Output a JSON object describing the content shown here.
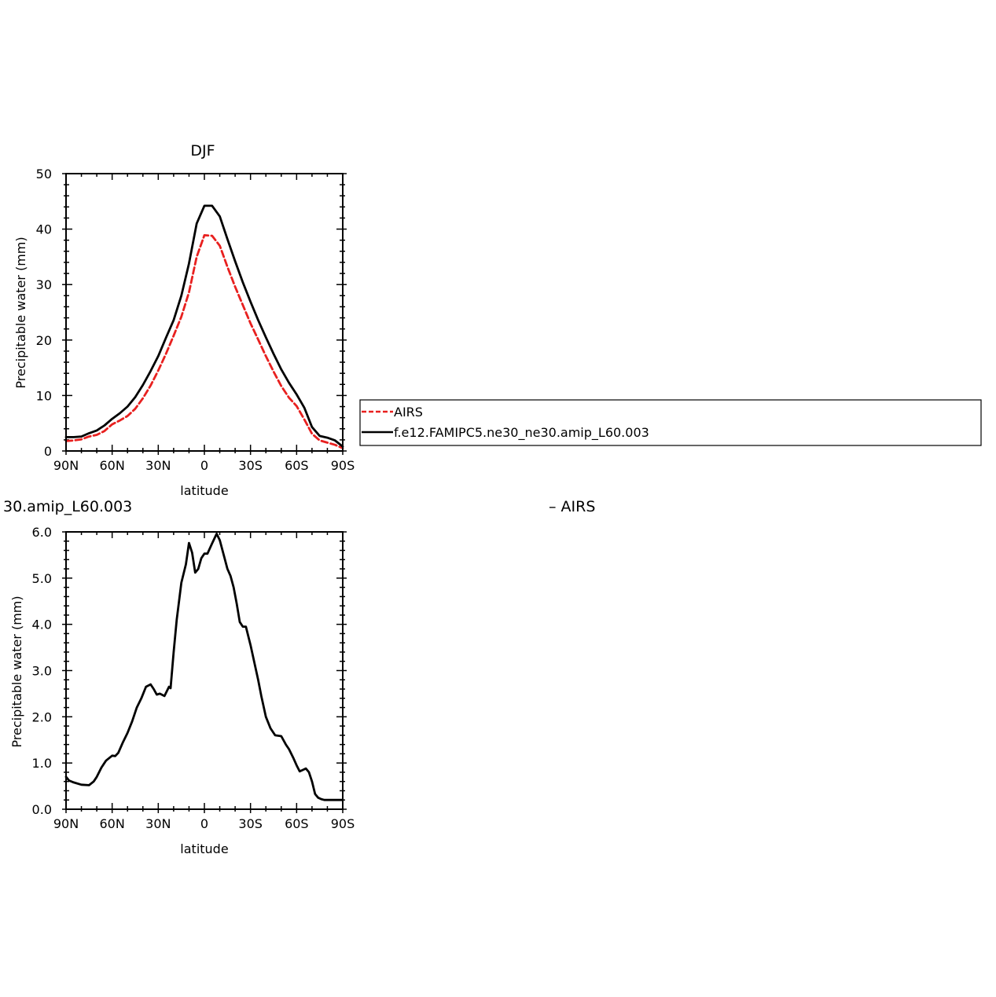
{
  "panels": [
    {
      "title": "DJF",
      "xlabel": "latitude",
      "ylabel": "Precipitable water (mm)",
      "xticks": [
        "90N",
        "60N",
        "30N",
        "0",
        "30S",
        "60S",
        "90S"
      ],
      "yticks": [
        "0",
        "10",
        "20",
        "30",
        "40",
        "50"
      ]
    },
    {
      "title": "30.amip_L60.003",
      "subtitle_right": "– AIRS",
      "xlabel": "latitude",
      "ylabel": "Precipitable water (mm)",
      "xticks": [
        "90N",
        "60N",
        "30N",
        "0",
        "30S",
        "60S",
        "90S"
      ],
      "yticks": [
        "0.0",
        "1.0",
        "2.0",
        "3.0",
        "4.0",
        "5.0",
        "6.0"
      ]
    }
  ],
  "legend": {
    "items": [
      {
        "label": "AIRS",
        "color": "#e8201f",
        "style": "dashed"
      },
      {
        "label": "f.e12.FAMIPC5.ne30_ne30.amip_L60.003",
        "color": "#000000",
        "style": "solid"
      }
    ]
  },
  "chart_data": [
    {
      "type": "line",
      "title": "DJF",
      "xlabel": "latitude",
      "ylabel": "Precipitable water (mm)",
      "xlim": [
        90,
        -90
      ],
      "ylim": [
        0,
        50
      ],
      "series": [
        {
          "name": "AIRS",
          "color": "#e8201f",
          "style": "dashed",
          "x": [
            90,
            85,
            80,
            75,
            70,
            65,
            60,
            55,
            50,
            45,
            40,
            35,
            30,
            25,
            20,
            15,
            10,
            5,
            0,
            -5,
            -10,
            -15,
            -20,
            -25,
            -30,
            -35,
            -40,
            -45,
            -50,
            -55,
            -60,
            -65,
            -70,
            -75,
            -80,
            -85,
            -90
          ],
          "y": [
            1.8,
            1.9,
            2.1,
            2.6,
            2.9,
            3.6,
            4.8,
            5.5,
            6.3,
            7.6,
            9.5,
            11.8,
            14.5,
            17.5,
            20.8,
            24.2,
            28.6,
            35.0,
            38.9,
            38.8,
            37.0,
            33.2,
            29.6,
            26.3,
            23.0,
            20.1,
            17.1,
            14.3,
            11.7,
            9.6,
            8.1,
            5.7,
            3.1,
            1.9,
            1.5,
            1.1,
            0.5
          ]
        },
        {
          "name": "f.e12.FAMIPC5.ne30_ne30.amip_L60.003",
          "color": "#000000",
          "style": "solid",
          "x": [
            90,
            85,
            80,
            75,
            70,
            65,
            60,
            55,
            50,
            45,
            40,
            35,
            30,
            25,
            20,
            15,
            10,
            5,
            0,
            -5,
            -10,
            -15,
            -20,
            -25,
            -30,
            -35,
            -40,
            -45,
            -50,
            -55,
            -60,
            -65,
            -70,
            -75,
            -80,
            -85,
            -90
          ],
          "y": [
            2.5,
            2.5,
            2.6,
            3.2,
            3.7,
            4.6,
            5.8,
            6.8,
            8.0,
            9.7,
            11.9,
            14.4,
            17.1,
            20.4,
            23.6,
            28.0,
            33.8,
            41.0,
            44.2,
            44.2,
            42.3,
            38.2,
            34.2,
            30.4,
            26.9,
            23.6,
            20.5,
            17.5,
            14.7,
            12.3,
            10.2,
            7.8,
            4.3,
            2.7,
            2.4,
            1.9,
            0.8
          ]
        }
      ]
    },
    {
      "type": "line",
      "title": "30.amip_L60.003",
      "xlabel": "latitude",
      "ylabel": "Precipitable water (mm)",
      "xlim": [
        90,
        -90
      ],
      "ylim": [
        0,
        6
      ],
      "series": [
        {
          "color": "#000000",
          "style": "solid",
          "x": [
            90,
            88,
            85,
            80,
            75,
            72,
            70,
            67,
            64,
            60,
            58,
            56,
            53,
            50,
            47,
            44,
            41,
            38,
            35,
            33,
            31,
            29,
            26,
            23,
            22,
            20,
            18,
            15,
            12,
            10,
            8,
            6,
            4,
            2,
            0,
            -2,
            -5,
            -8,
            -10,
            -13,
            -15,
            -17,
            -19,
            -21,
            -23,
            -25,
            -27,
            -30,
            -33,
            -35,
            -37,
            -40,
            -43,
            -46,
            -50,
            -53,
            -55,
            -58,
            -60,
            -62,
            -64,
            -66,
            -68,
            -70,
            -72,
            -74,
            -76,
            -78,
            -80,
            -82,
            -84,
            -86,
            -88,
            -90
          ],
          "y": [
            0.7,
            0.62,
            0.58,
            0.53,
            0.52,
            0.6,
            0.7,
            0.9,
            1.05,
            1.16,
            1.15,
            1.22,
            1.45,
            1.65,
            1.9,
            2.2,
            2.4,
            2.65,
            2.7,
            2.6,
            2.48,
            2.5,
            2.45,
            2.65,
            2.62,
            3.4,
            4.1,
            4.9,
            5.3,
            5.76,
            5.55,
            5.12,
            5.2,
            5.43,
            5.53,
            5.53,
            5.75,
            5.96,
            5.82,
            5.45,
            5.2,
            5.05,
            4.8,
            4.45,
            4.05,
            3.95,
            3.95,
            3.55,
            3.1,
            2.8,
            2.45,
            2.0,
            1.75,
            1.6,
            1.58,
            1.4,
            1.3,
            1.1,
            0.95,
            0.82,
            0.85,
            0.88,
            0.8,
            0.6,
            0.33,
            0.25,
            0.22,
            0.2,
            0.2,
            0.2,
            0.2,
            0.2,
            0.2,
            0.2
          ]
        }
      ]
    }
  ]
}
